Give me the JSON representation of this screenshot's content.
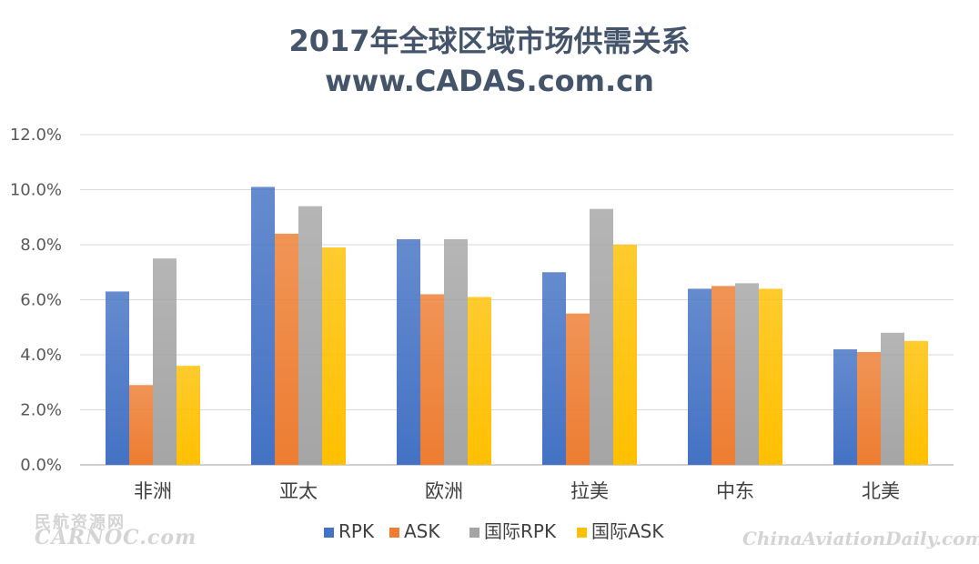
{
  "chart_data": {
    "type": "bar",
    "title": "2017年全球区域市场供需关系",
    "subtitle": "www.CADAS.com.cn",
    "categories": [
      "非洲",
      "亚太",
      "欧洲",
      "拉美",
      "中东",
      "北美"
    ],
    "series": [
      {
        "name": "RPK",
        "color": "#4472c4",
        "values": [
          6.3,
          10.1,
          8.2,
          7.0,
          6.4,
          4.2
        ]
      },
      {
        "name": "ASK",
        "color": "#ed7d31",
        "values": [
          2.9,
          8.4,
          6.2,
          5.5,
          6.5,
          4.1
        ]
      },
      {
        "name": "国际RPK",
        "color": "#a5a5a5",
        "values": [
          7.5,
          9.4,
          8.2,
          9.3,
          6.6,
          4.8
        ]
      },
      {
        "name": "国际ASK",
        "color": "#ffc000",
        "values": [
          3.6,
          7.9,
          6.1,
          8.0,
          6.4,
          4.5
        ]
      }
    ],
    "ylim": [
      0,
      12
    ],
    "yticks": [
      "0.0%",
      "2.0%",
      "4.0%",
      "6.0%",
      "8.0%",
      "10.0%",
      "12.0%"
    ],
    "grid": true,
    "legend": "bottom"
  },
  "watermarks": {
    "left_cn": "民航资源网",
    "left_en": "CARNOC.com",
    "right": "ChinaAviationDaily.com"
  }
}
